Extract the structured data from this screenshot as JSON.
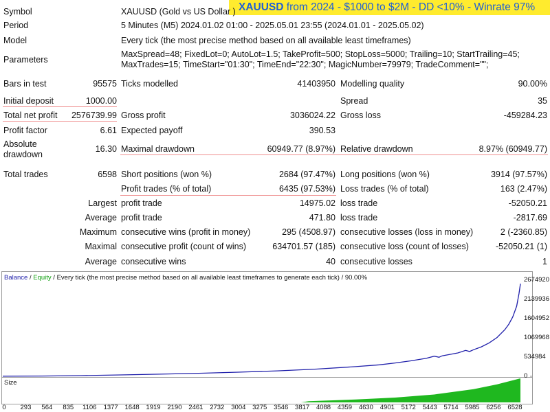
{
  "banner": {
    "symbol": "XAUUSD",
    "text": "from 2024 - $1000 to $2M - DD <10% - Winrate 97%"
  },
  "info": {
    "symbol_label": "Symbol",
    "symbol_value": "XAUUSD (Gold vs US Dollar )",
    "period_label": "Period",
    "period_value": "5 Minutes (M5) 2024.01.02 01:00 - 2025.05.01 23:55 (2024.01.01 - 2025.05.02)",
    "model_label": "Model",
    "model_value": "Every tick (the most precise method based on all available least timeframes)",
    "parameters_label": "Parameters",
    "parameters_line1": "MaxSpread=48; FixedLot=0; AutoLot=1.5; TakeProfit=500; StopLoss=5000; Trailing=10; StartTrailing=45;",
    "parameters_line2": "MaxTrades=15; TimeStart=\"01:30\"; TimeEnd=\"22:30\"; MagicNumber=79979; TradeComment=\"\";"
  },
  "stats": {
    "bars_label": "Bars in test",
    "bars_value": "95575",
    "ticks_label": "Ticks modelled",
    "ticks_value": "41403950",
    "quality_label": "Modelling quality",
    "quality_value": "90.00%",
    "deposit_label": "Initial deposit",
    "deposit_value": "1000.00",
    "spread_label": "Spread",
    "spread_value": "35",
    "netprofit_label": "Total net profit",
    "netprofit_value": "2576739.99",
    "grossprofit_label": "Gross profit",
    "grossprofit_value": "3036024.22",
    "grossloss_label": "Gross loss",
    "grossloss_value": "-459284.23",
    "pf_label": "Profit factor",
    "pf_value": "6.61",
    "payoff_label": "Expected payoff",
    "payoff_value": "390.53",
    "absdd_label_1": "Absolute",
    "absdd_label_2": "drawdown",
    "absdd_value": "16.30",
    "maxdd_label": "Maximal drawdown",
    "maxdd_value": "60949.77 (8.97%)",
    "reldd_label": "Relative drawdown",
    "reldd_value": "8.97% (60949.77)",
    "trades_label": "Total trades",
    "trades_value": "6598",
    "short_label": "Short positions (won %)",
    "short_value": "2684 (97.47%)",
    "long_label": "Long positions (won %)",
    "long_value": "3914 (97.57%)",
    "ptrades_label": "Profit trades (% of total)",
    "ptrades_value": "6435 (97.53%)",
    "ltrades_label": "Loss trades (% of total)",
    "ltrades_value": "163 (2.47%)",
    "largest_label": "Largest",
    "largest_profit_label": "profit trade",
    "largest_profit_value": "14975.02",
    "largest_loss_label": "loss trade",
    "largest_loss_value": "-52050.21",
    "average_label": "Average",
    "average_profit_label": "profit trade",
    "average_profit_value": "471.80",
    "average_loss_label": "loss trade",
    "average_loss_value": "-2817.69",
    "maximum_label": "Maximum",
    "maxwins_label": "consecutive wins (profit in money)",
    "maxwins_value": "295 (4508.97)",
    "maxlosses_label": "consecutive losses (loss in money)",
    "maxlosses_value": "2 (-2360.85)",
    "maximal_label": "Maximal",
    "maxprofit_label": "consecutive profit (count of wins)",
    "maxprofit_value": "634701.57 (185)",
    "maxloss_label": "consecutive loss (count of losses)",
    "maxloss_value": "-52050.21 (1)",
    "avg2_label": "Average",
    "avgwins_label": "consecutive wins",
    "avgwins_value": "40",
    "avglosses_label": "consecutive losses",
    "avglosses_value": "1"
  },
  "chart_data": {
    "type": "line",
    "legend_balance": "Balance",
    "legend_sep": " / ",
    "legend_equity": "Equity",
    "legend_rest": " / Every tick (the most precise method based on all available least timeframes to generate each tick) / 90.00%",
    "size_label": "Size",
    "y_ticks": [
      "2674920",
      "2139936",
      "1604952",
      "1069968",
      "534984",
      "0"
    ],
    "y_tick_values": [
      2674920,
      2139936,
      1604952,
      1069968,
      534984,
      0
    ],
    "x_ticks": [
      "0",
      "293",
      "564",
      "835",
      "1106",
      "1377",
      "1648",
      "1919",
      "2190",
      "2461",
      "2732",
      "3004",
      "3275",
      "3546",
      "3817",
      "4088",
      "4359",
      "4630",
      "4901",
      "5172",
      "5443",
      "5714",
      "5985",
      "6256",
      "6528"
    ],
    "x_tick_values": [
      0,
      293,
      564,
      835,
      1106,
      1377,
      1648,
      1919,
      2190,
      2461,
      2732,
      3004,
      3275,
      3546,
      3817,
      4088,
      4359,
      4630,
      4901,
      5172,
      5443,
      5714,
      5985,
      6256,
      6528
    ],
    "xlim": [
      0,
      6598
    ],
    "ylim": [
      0,
      2674920
    ],
    "balance_points": [
      [
        0,
        1000
      ],
      [
        500,
        8000
      ],
      [
        1000,
        20000
      ],
      [
        1500,
        38000
      ],
      [
        2000,
        60000
      ],
      [
        2500,
        85000
      ],
      [
        3000,
        115000
      ],
      [
        3500,
        150000
      ],
      [
        4000,
        200000
      ],
      [
        4500,
        270000
      ],
      [
        4800,
        320000
      ],
      [
        5000,
        370000
      ],
      [
        5200,
        430000
      ],
      [
        5400,
        500000
      ],
      [
        5500,
        560000
      ],
      [
        5560,
        530000
      ],
      [
        5600,
        570000
      ],
      [
        5800,
        650000
      ],
      [
        5900,
        720000
      ],
      [
        5950,
        690000
      ],
      [
        6000,
        740000
      ],
      [
        6100,
        820000
      ],
      [
        6200,
        930000
      ],
      [
        6300,
        1080000
      ],
      [
        6400,
        1300000
      ],
      [
        6450,
        1450000
      ],
      [
        6500,
        1650000
      ],
      [
        6550,
        1950000
      ],
      [
        6580,
        2300000
      ],
      [
        6598,
        2576740
      ]
    ],
    "size_points": [
      [
        0,
        0
      ],
      [
        3800,
        0
      ],
      [
        3900,
        0.05
      ],
      [
        4500,
        0.12
      ],
      [
        5000,
        0.2
      ],
      [
        5500,
        0.33
      ],
      [
        6000,
        0.55
      ],
      [
        6300,
        0.75
      ],
      [
        6598,
        1.0
      ]
    ],
    "colors": {
      "balance": "#1f1faa",
      "equity": "#0a9e0a",
      "size_fill": "#1fb81f",
      "axis": "#9a9a9a"
    }
  }
}
